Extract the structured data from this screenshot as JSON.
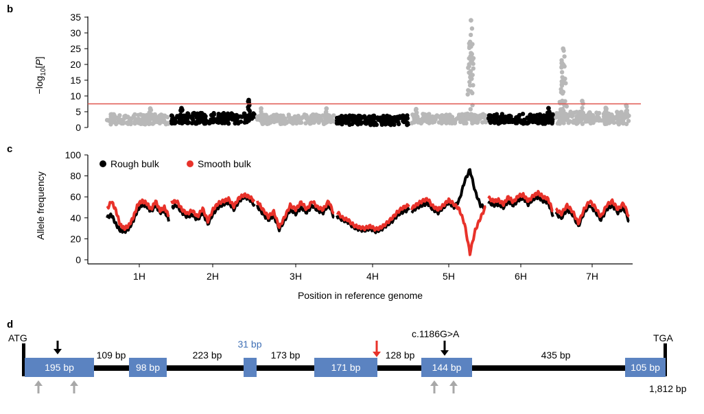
{
  "panel_labels": {
    "b": "b",
    "c": "c",
    "d": "d"
  },
  "chart_data": [
    {
      "type": "scatter",
      "panel": "b",
      "title": "",
      "ylabel": "−log10[P]",
      "ylabel_parts": {
        "prefix": "−log",
        "sub": "10",
        "open": "[",
        "var": "P",
        "close": "]"
      },
      "ylim": [
        0,
        35
      ],
      "yticks": [
        "0",
        "5",
        "10",
        "15",
        "20",
        "25",
        "30",
        "35"
      ],
      "threshold": 7.5,
      "colors": {
        "odd": "#b8b8b8",
        "even": "#000000",
        "threshold": "#e0554f"
      },
      "chromosomes": [
        {
          "name": "1H",
          "baseline": 2.6,
          "noise": 1.6,
          "peaks": [
            {
              "pos": 0.7,
              "height": 6.0
            }
          ]
        },
        {
          "name": "2H",
          "baseline": 2.9,
          "noise": 1.7,
          "peaks": [
            {
              "pos": 0.12,
              "height": 6.1
            },
            {
              "pos": 0.93,
              "height": 8.7
            }
          ]
        },
        {
          "name": "3H",
          "baseline": 2.6,
          "noise": 1.5,
          "peaks": [
            {
              "pos": 0.05,
              "height": 6.0
            },
            {
              "pos": 0.9,
              "height": 6.0
            }
          ]
        },
        {
          "name": "4H",
          "baseline": 2.3,
          "noise": 1.5,
          "peaks": []
        },
        {
          "name": "5H",
          "baseline": 2.8,
          "noise": 1.5,
          "peaks": [
            {
              "pos": 0.06,
              "height": 5.8
            },
            {
              "pos": 0.8,
              "height": 34.0
            }
          ]
        },
        {
          "name": "6H",
          "baseline": 2.7,
          "noise": 1.6,
          "peaks": [
            {
              "pos": 0.93,
              "height": 6.1
            }
          ]
        },
        {
          "name": "7H",
          "baseline": 3.0,
          "noise": 2.0,
          "peaks": [
            {
              "pos": 0.1,
              "height": 25.0
            },
            {
              "pos": 0.36,
              "height": 8.4
            },
            {
              "pos": 0.68,
              "height": 6.2
            },
            {
              "pos": 0.96,
              "height": 7.0
            }
          ]
        }
      ]
    },
    {
      "type": "line",
      "panel": "c",
      "title": "",
      "xlabel": "Position in reference genome",
      "ylabel": "Allele frequency",
      "ylim": [
        0,
        100
      ],
      "yticks": [
        "0",
        "20",
        "40",
        "60",
        "80",
        "100"
      ],
      "categories": [
        "1H",
        "2H",
        "3H",
        "4H",
        "5H",
        "6H",
        "7H"
      ],
      "legend_position": "top-left",
      "series": [
        {
          "name": "Rough bulk",
          "color": "#000000",
          "values": [
            [
              40,
              43,
              34,
              28,
              27,
              30,
              38,
              48,
              53,
              51,
              46,
              52,
              45,
              47,
              38
            ],
            [
              50,
              52,
              45,
              41,
              43,
              38,
              45,
              34,
              44,
              50,
              53,
              55,
              48,
              56,
              60,
              58,
              52
            ],
            [
              51,
              44,
              38,
              42,
              29,
              38,
              48,
              44,
              50,
              45,
              52,
              47,
              45,
              53,
              40
            ],
            [
              42,
              38,
              36,
              31,
              29,
              28,
              30,
              27,
              29,
              33,
              37,
              43,
              46,
              48
            ],
            [
              46,
              50,
              52,
              54,
              48,
              45,
              50,
              55,
              50,
              57,
              75,
              86,
              65,
              52,
              49
            ],
            [
              55,
              52,
              53,
              50,
              56,
              52,
              57,
              59,
              53,
              58,
              60,
              56,
              55,
              42
            ],
            [
              44,
              40,
              48,
              43,
              32,
              45,
              52,
              46,
              38,
              48,
              52,
              45,
              50,
              36
            ]
          ]
        },
        {
          "name": "Smooth bulk",
          "color": "#e8322a",
          "values": [
            [
              48,
              56,
              47,
              33,
              30,
              33,
              41,
              53,
              56,
              54,
              48,
              56,
              47,
              50,
              42
            ],
            [
              55,
              56,
              48,
              44,
              47,
              41,
              49,
              37,
              48,
              54,
              56,
              58,
              51,
              59,
              62,
              60,
              56
            ],
            [
              56,
              48,
              41,
              46,
              31,
              41,
              52,
              48,
              55,
              48,
              56,
              50,
              48,
              56,
              43
            ],
            [
              46,
              40,
              38,
              33,
              31,
              30,
              32,
              29,
              31,
              35,
              40,
              46,
              50,
              52
            ],
            [
              49,
              53,
              56,
              58,
              51,
              48,
              52,
              57,
              53,
              48,
              34,
              6,
              28,
              40,
              51
            ],
            [
              59,
              56,
              57,
              53,
              60,
              55,
              61,
              62,
              56,
              61,
              64,
              60,
              58,
              46
            ],
            [
              48,
              44,
              52,
              46,
              35,
              48,
              56,
              50,
              41,
              52,
              56,
              48,
              54,
              40
            ]
          ]
        }
      ]
    }
  ],
  "gene_model": {
    "start_label": "ATG",
    "end_label": "TGA",
    "length_label": "1,812 bp",
    "mutation_label": "c.1186G>A",
    "exon_color": "#5b83c1",
    "exons": [
      {
        "label": "195 bp",
        "label_color": "#ffffff"
      },
      {
        "label": "98 bp",
        "label_color": "#ffffff"
      },
      {
        "label": "31 bp",
        "label_color": "#3f6fb5"
      },
      {
        "label": "171 bp",
        "label_color": "#ffffff"
      },
      {
        "label": "144 bp",
        "label_color": "#ffffff"
      },
      {
        "label": "105 bp",
        "label_color": "#ffffff"
      }
    ],
    "introns": [
      "109 bp",
      "223 bp",
      "173 bp",
      "128 bp",
      "435 bp"
    ],
    "markers": [
      {
        "kind": "down-arrow",
        "color": "#000000",
        "exon": 0
      },
      {
        "kind": "down-arrow",
        "color": "#e8322a",
        "intron": 3
      },
      {
        "kind": "down-arrow",
        "color": "#000000",
        "exon": 4
      },
      {
        "kind": "up-arrow",
        "color": "#a8a8a8",
        "exon": 0
      },
      {
        "kind": "up-arrow",
        "color": "#a8a8a8",
        "exon": 0
      },
      {
        "kind": "up-arrow",
        "color": "#a8a8a8",
        "exon": 4
      },
      {
        "kind": "up-arrow",
        "color": "#a8a8a8",
        "exon": 4
      }
    ]
  }
}
